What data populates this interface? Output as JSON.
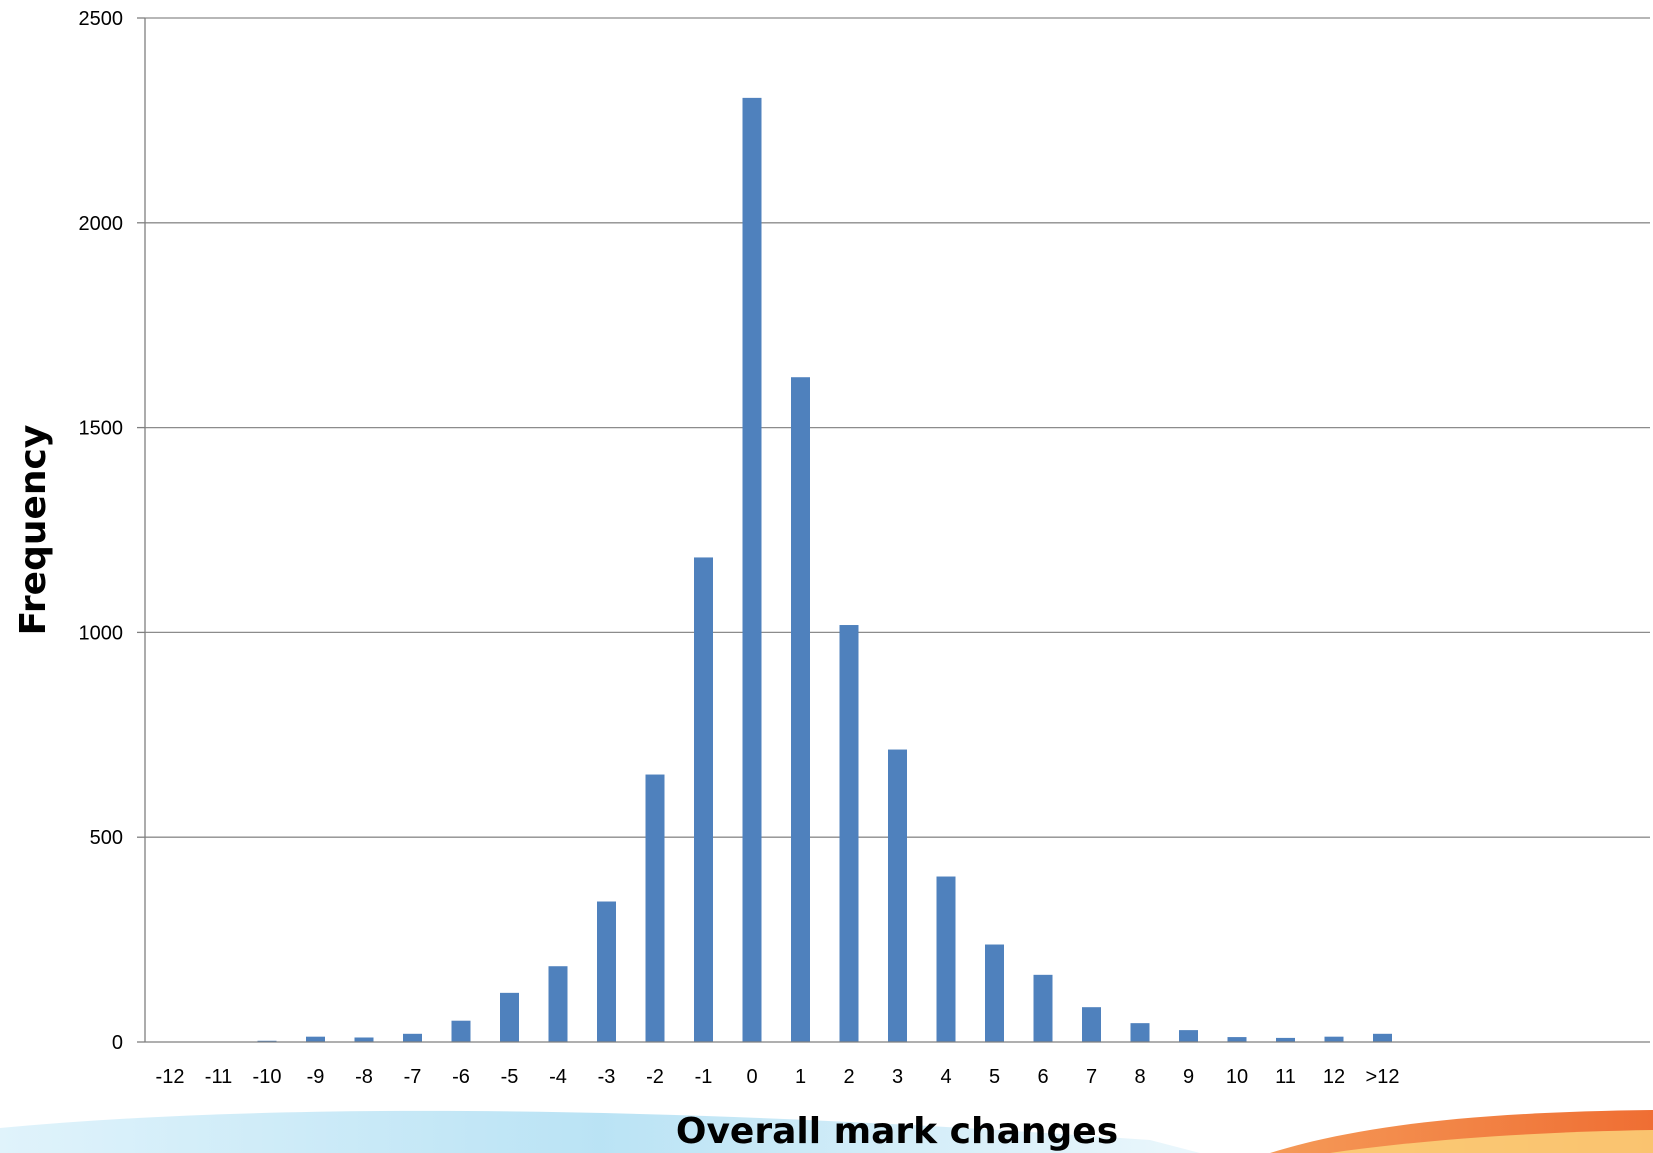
{
  "chart_data": {
    "type": "bar",
    "title": "",
    "xlabel": "Overall mark changes",
    "ylabel": "Frequency",
    "ylim": [
      0,
      2500
    ],
    "yticks": [
      0,
      500,
      1000,
      1500,
      2000,
      2500
    ],
    "grid": true,
    "legend": "none",
    "categories": [
      "-12",
      "-11",
      "-10",
      "-9",
      "-8",
      "-7",
      "-6",
      "-5",
      "-4",
      "-3",
      "-2",
      "-1",
      "0",
      "1",
      "2",
      "3",
      "4",
      "5",
      "6",
      "7",
      "8",
      "9",
      "10",
      "11",
      "12",
      ">12"
    ],
    "series": [
      {
        "values": [
          0,
          0,
          3,
          13,
          11,
          20,
          52,
          120,
          185,
          343,
          653,
          1183,
          2305,
          1623,
          1018,
          714,
          404,
          238,
          164,
          85,
          46,
          29,
          12,
          10,
          13,
          20
        ]
      }
    ]
  },
  "colors": {
    "bar": "#4f81bd",
    "grid": "#8c8c8c",
    "axis": "#7f7f7f",
    "text": "#000000",
    "wave_light": "#bfe6f5",
    "wave_orange": "#f07a3a",
    "wave_yellow": "#fbd27a"
  }
}
